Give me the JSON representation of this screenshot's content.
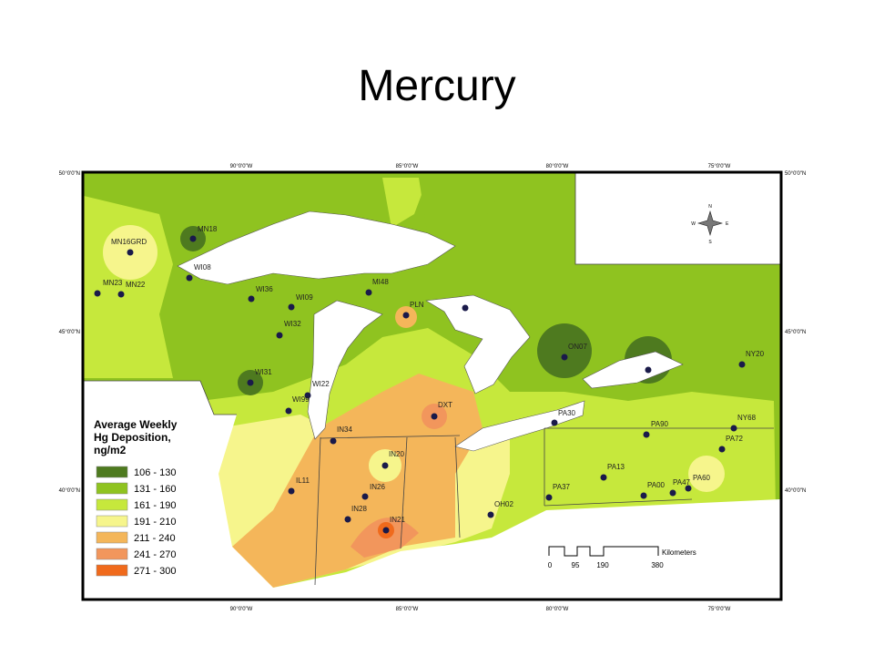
{
  "title": "Mercury",
  "legend": {
    "title": [
      "Average Weekly",
      "Hg Deposition,",
      "ng/m2"
    ],
    "classes": [
      {
        "label": "106 - 130",
        "color": "#4e7a1f"
      },
      {
        "label": "131 - 160",
        "color": "#8fc320"
      },
      {
        "label": "161 - 190",
        "color": "#c6e83c"
      },
      {
        "label": "191 - 210",
        "color": "#f6f58c"
      },
      {
        "label": "211 - 240",
        "color": "#f4b65a"
      },
      {
        "label": "241 - 270",
        "color": "#f2965c"
      },
      {
        "label": "271 - 300",
        "color": "#f06a1c"
      }
    ]
  },
  "graticule": {
    "longitudes": [
      "90°0'0\"W",
      "85°0'0\"W",
      "80°0'0\"W",
      "75°0'0\"W"
    ],
    "latitudes": [
      "50°0'0\"N",
      "45°0'0\"N",
      "40°0'0\"N"
    ]
  },
  "stations": [
    "MN16GRD",
    "MN18",
    "WI08",
    "MN23",
    "MN22",
    "WI36",
    "WI09",
    "MI48",
    "PLN",
    "WI32",
    "WI31",
    "WI22",
    "WI99",
    "ON07",
    "NY20",
    "DXT",
    "PA30",
    "NY68",
    "PA90",
    "IN34",
    "PA72",
    "IN20",
    "PA13",
    "IL11",
    "PA60",
    "PA47",
    "PA00",
    "IN26",
    "PA37",
    "IN28",
    "OH02",
    "IN21"
  ],
  "scale_bar": {
    "ticks": [
      "0",
      "95",
      "190",
      "380"
    ],
    "unit": "Kilometers"
  },
  "compass": [
    "N",
    "E",
    "S",
    "W"
  ]
}
